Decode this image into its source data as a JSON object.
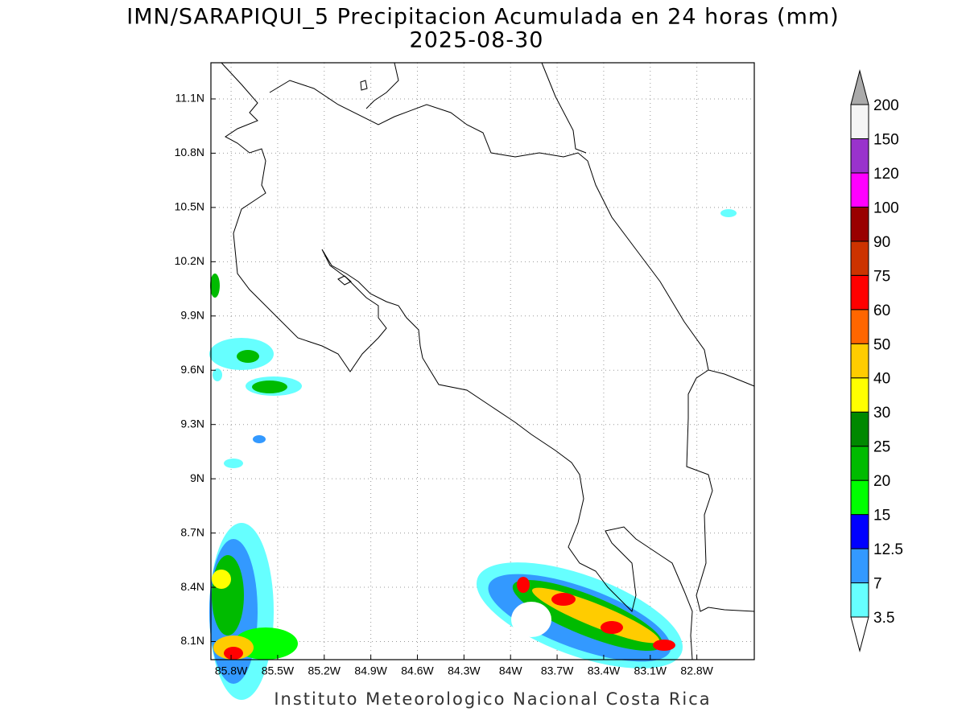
{
  "header": {
    "title": "IMN/SARAPIQUI_5 Precipitacion Acumulada en 24 horas (mm)",
    "subtitle": "2025-08-30"
  },
  "map": {
    "xlim": [
      -85.93,
      -82.43
    ],
    "ylim": [
      8.0,
      11.3
    ],
    "xticks": [
      {
        "value": -85.8,
        "label": "85.8W"
      },
      {
        "value": -85.5,
        "label": "85.5W"
      },
      {
        "value": -85.2,
        "label": "85.2W"
      },
      {
        "value": -84.9,
        "label": "84.9W"
      },
      {
        "value": -84.6,
        "label": "84.6W"
      },
      {
        "value": -84.3,
        "label": "84.3W"
      },
      {
        "value": -84.0,
        "label": "84W"
      },
      {
        "value": -83.7,
        "label": "83.7W"
      },
      {
        "value": -83.4,
        "label": "83.4W"
      },
      {
        "value": -83.1,
        "label": "83.1W"
      },
      {
        "value": -82.8,
        "label": "82.8W"
      }
    ],
    "yticks": [
      {
        "value": 8.1,
        "label": "8.1N"
      },
      {
        "value": 8.4,
        "label": "8.4N"
      },
      {
        "value": 8.7,
        "label": "8.7N"
      },
      {
        "value": 9.0,
        "label": "9N"
      },
      {
        "value": 9.3,
        "label": "9.3N"
      },
      {
        "value": 9.6,
        "label": "9.6N"
      },
      {
        "value": 9.9,
        "label": "9.9N"
      },
      {
        "value": 10.2,
        "label": "10.2N"
      },
      {
        "value": 10.5,
        "label": "10.5N"
      },
      {
        "value": 10.8,
        "label": "10.8N"
      },
      {
        "value": 11.1,
        "label": "11.1N"
      }
    ],
    "grid": true
  },
  "colorbar": {
    "levels": [
      3.5,
      7,
      12.5,
      15,
      20,
      25,
      30,
      40,
      50,
      60,
      75,
      90,
      100,
      120,
      150,
      200
    ],
    "colors": [
      "#66ffff",
      "#3399ff",
      "#0000ff",
      "#00ff00",
      "#00bb00",
      "#008800",
      "#ffff00",
      "#ffcc00",
      "#ff6600",
      "#ff0000",
      "#cc3300",
      "#990000",
      "#ff00ff",
      "#9933cc",
      "#f5f5f5"
    ],
    "over_color": "#aaaaaa",
    "under_color": "#ffffff"
  },
  "footer": {
    "text": "Instituto Meteorologico Nacional Costa Rica"
  }
}
